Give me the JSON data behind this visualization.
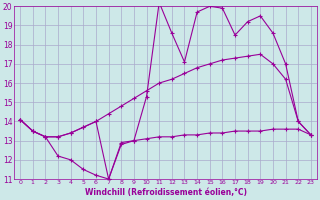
{
  "xlabel": "Windchill (Refroidissement éolien,°C)",
  "background_color": "#cde8e8",
  "grid_color": "#aaaacc",
  "line_color": "#990099",
  "xmin": 0,
  "xmax": 23,
  "ymin": 11,
  "ymax": 20,
  "line1_x": [
    0,
    1,
    2,
    3,
    4,
    5,
    6,
    7,
    8,
    9,
    10,
    11,
    12,
    13,
    14,
    15,
    16,
    17,
    18,
    19,
    20,
    21,
    22,
    23
  ],
  "line1_y": [
    14.1,
    13.5,
    13.2,
    12.2,
    12.0,
    11.5,
    11.2,
    11.0,
    12.8,
    13.0,
    13.1,
    13.2,
    13.2,
    13.3,
    13.3,
    13.4,
    13.4,
    13.5,
    13.5,
    13.5,
    13.6,
    13.6,
    13.6,
    13.3
  ],
  "line2_x": [
    0,
    1,
    2,
    3,
    4,
    5,
    6,
    7,
    8,
    9,
    10,
    11,
    12,
    13,
    14,
    15,
    16,
    17,
    18,
    19,
    20,
    21,
    22,
    23
  ],
  "line2_y": [
    14.1,
    13.5,
    13.2,
    13.2,
    13.4,
    13.7,
    14.0,
    14.4,
    14.8,
    15.2,
    15.6,
    16.0,
    16.2,
    16.5,
    16.8,
    17.0,
    17.2,
    17.3,
    17.4,
    17.5,
    17.0,
    16.2,
    14.0,
    13.3
  ],
  "line3_x": [
    0,
    1,
    2,
    3,
    4,
    5,
    6,
    7,
    8,
    9,
    10,
    11,
    12,
    13,
    14,
    15,
    16,
    17,
    18,
    19,
    20,
    21,
    22,
    23
  ],
  "line3_y": [
    14.1,
    13.5,
    13.2,
    13.2,
    13.4,
    13.7,
    14.0,
    11.0,
    12.9,
    13.0,
    15.3,
    20.2,
    18.6,
    17.1,
    19.7,
    20.0,
    19.9,
    18.5,
    19.2,
    19.5,
    18.6,
    17.0,
    14.0,
    13.3
  ],
  "xtick_labels": [
    "0",
    "1",
    "2",
    "3",
    "4",
    "5",
    "6",
    "7",
    "8",
    "9",
    "10",
    "11",
    "12",
    "13",
    "14",
    "15",
    "16",
    "17",
    "18",
    "19",
    "20",
    "21",
    "22",
    "23"
  ],
  "ytick_labels": [
    "11",
    "12",
    "13",
    "14",
    "15",
    "16",
    "17",
    "18",
    "19",
    "20"
  ]
}
